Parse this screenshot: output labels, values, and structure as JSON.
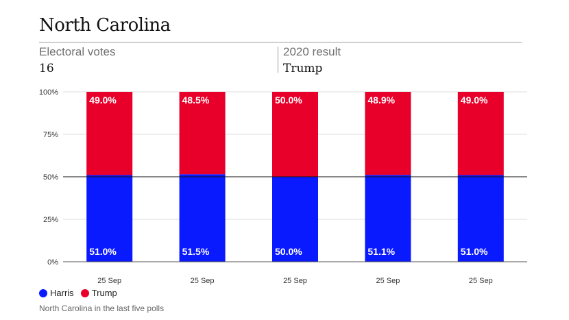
{
  "header": {
    "title": "North Carolina",
    "electoral_votes_label": "Electoral votes",
    "electoral_votes_value": "16",
    "result_label": "2020 result",
    "result_value": "Trump"
  },
  "colors": {
    "harris": "#0a1aff",
    "trump": "#e8002a",
    "grid": "#dddddd",
    "axis": "#111111"
  },
  "chart_data": {
    "type": "bar",
    "stacked": true,
    "categories": [
      "25 Sep",
      "25 Sep",
      "25 Sep",
      "25 Sep",
      "25 Sep"
    ],
    "series": [
      {
        "name": "Harris",
        "values": [
          51.0,
          51.5,
          50.0,
          51.1,
          51.0
        ],
        "labels": [
          "51.0%",
          "51.5%",
          "50.0%",
          "51.1%",
          "51.0%"
        ]
      },
      {
        "name": "Trump",
        "values": [
          49.0,
          48.5,
          50.0,
          48.9,
          49.0
        ],
        "labels": [
          "49.0%",
          "48.5%",
          "50.0%",
          "48.9%",
          "49.0%"
        ]
      }
    ],
    "ylim": [
      0,
      100
    ],
    "yticks": [
      0,
      25,
      50,
      75,
      100
    ],
    "ytick_labels": [
      "0%",
      "25%",
      "50%",
      "75%",
      "100%"
    ],
    "reference_line": 50,
    "grid": true,
    "legend_position": "bottom-left"
  },
  "footer": {
    "caption": "North Carolina in the last five polls"
  }
}
